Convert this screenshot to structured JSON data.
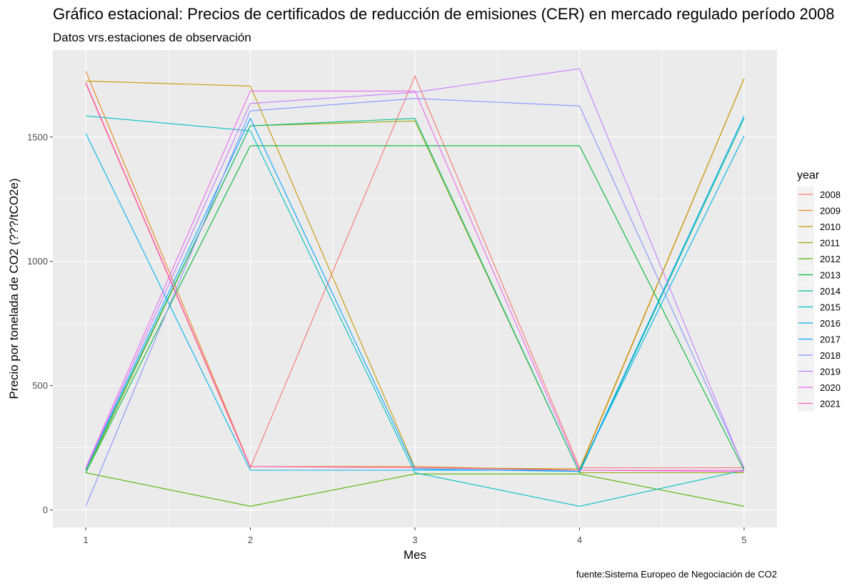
{
  "chart_data": {
    "type": "line",
    "title": "Gráfico estacional: Precios de certificados de reducción de emisiones (CER) en mercado regulado período 2008",
    "subtitle": "Datos vrs.estaciones de observación",
    "xlabel": "Mes",
    "ylabel": "Precio por tonelada de CO2 (???/tCO2e)",
    "caption": "fuente:Sistema Europeo de Negociación de CO2",
    "x": [
      1,
      2,
      3,
      4,
      5
    ],
    "x_ticks": [
      "1",
      "2",
      "3",
      "4",
      "5"
    ],
    "y_ticks": [
      0,
      500,
      1000,
      1500
    ],
    "xlim": [
      0.8,
      5.2
    ],
    "ylim": [
      -70,
      1850
    ],
    "grid": true,
    "background": "#ebebeb",
    "legend": {
      "title": "year",
      "position": "right"
    },
    "series": [
      {
        "name": "2008",
        "color": "#F8766D",
        "values": [
          1715,
          170,
          1745,
          170,
          170
        ]
      },
      {
        "name": "2009",
        "color": "#E7861B",
        "values": [
          1765,
          175,
          175,
          160,
          1735
        ]
      },
      {
        "name": "2010",
        "color": "#C49A00",
        "values": [
          1725,
          1705,
          170,
          165,
          1735
        ]
      },
      {
        "name": "2011",
        "color": "#95A900",
        "values": [
          150,
          1545,
          1565,
          150,
          150
        ]
      },
      {
        "name": "2012",
        "color": "#53B400",
        "values": [
          150,
          15,
          145,
          145,
          15
        ]
      },
      {
        "name": "2013",
        "color": "#00BA38",
        "values": [
          150,
          1465,
          1465,
          1465,
          160
        ]
      },
      {
        "name": "2014",
        "color": "#00C08B",
        "values": [
          160,
          1545,
          1575,
          150,
          1575
        ]
      },
      {
        "name": "2015",
        "color": "#00BFC4",
        "values": [
          1585,
          1525,
          150,
          15,
          160
        ]
      },
      {
        "name": "2016",
        "color": "#00B4EF",
        "values": [
          1515,
          160,
          160,
          160,
          1505
        ]
      },
      {
        "name": "2017",
        "color": "#00A5FF",
        "values": [
          165,
          1575,
          165,
          155,
          1585
        ]
      },
      {
        "name": "2018",
        "color": "#8494FF",
        "values": [
          15,
          1605,
          1655,
          1625,
          170
        ]
      },
      {
        "name": "2019",
        "color": "#C77CFF",
        "values": [
          165,
          1635,
          1680,
          1775,
          165
        ]
      },
      {
        "name": "2020",
        "color": "#ED68ED",
        "values": [
          170,
          1685,
          1685,
          160,
          160
        ]
      },
      {
        "name": "2021",
        "color": "#FF61C3",
        "values": [
          1720,
          175,
          170,
          160,
          155
        ]
      }
    ]
  }
}
